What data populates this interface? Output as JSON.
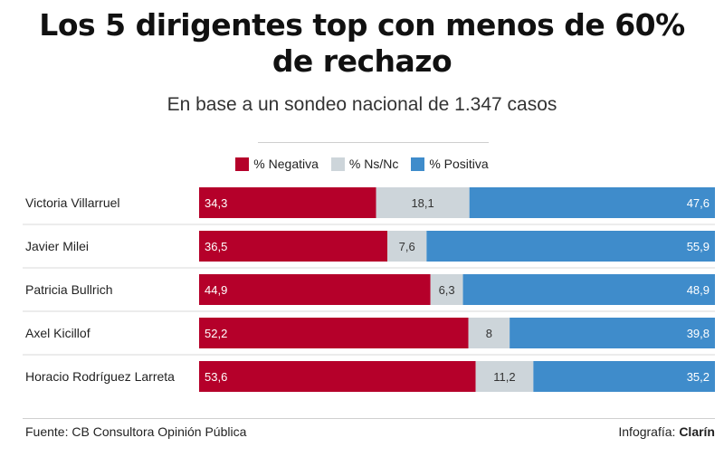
{
  "title": "Los 5 dirigentes top con menos de 60% de rechazo",
  "subtitle": "En base a un sondeo nacional de 1.347 casos",
  "colors": {
    "negativa": "#b5002a",
    "nsnc": "#cdd5da",
    "positiva": "#3f8ccb"
  },
  "legend": [
    {
      "label": "% Negativa",
      "color": "#b5002a"
    },
    {
      "label": "% Ns/Nc",
      "color": "#cdd5da"
    },
    {
      "label": "% Positiva",
      "color": "#3f8ccb"
    }
  ],
  "chart_data": {
    "type": "bar",
    "stacked": true,
    "orientation": "horizontal",
    "categories": [
      "Victoria Villarruel",
      "Javier Milei",
      "Patricia Bullrich",
      "Axel Kicillof",
      "Horacio Rodríguez Larreta"
    ],
    "series": [
      {
        "name": "% Negativa",
        "values": [
          34.3,
          36.5,
          44.9,
          52.2,
          53.6
        ],
        "labels": [
          "34,3",
          "36,5",
          "44,9",
          "52,2",
          "53,6"
        ]
      },
      {
        "name": "% Ns/Nc",
        "values": [
          18.1,
          7.6,
          6.3,
          8,
          11.2
        ],
        "labels": [
          "18,1",
          "7,6",
          "6,3",
          "8",
          "11,2"
        ]
      },
      {
        "name": "% Positiva",
        "values": [
          47.6,
          55.9,
          48.9,
          39.8,
          35.2
        ],
        "labels": [
          "47,6",
          "55,9",
          "48,9",
          "39,8",
          "35,2"
        ]
      }
    ]
  },
  "footer": {
    "source": "Fuente: CB Consultora Opinión Pública",
    "credit_prefix": "Infografía: ",
    "credit_brand": "Clarín"
  }
}
